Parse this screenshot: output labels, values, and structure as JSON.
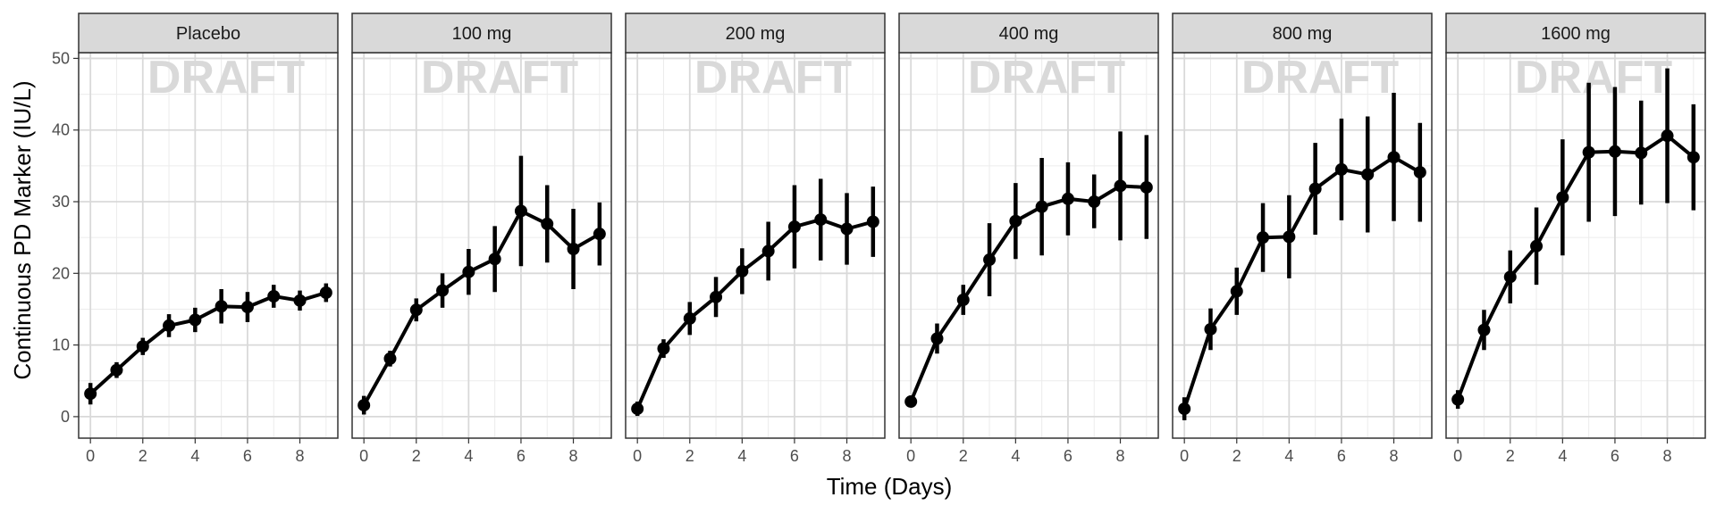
{
  "chart_data": {
    "type": "line",
    "facets": [
      {
        "label": "Placebo",
        "x": [
          0,
          1,
          2,
          3,
          4,
          5,
          6,
          7,
          8,
          9
        ],
        "y": [
          3.2,
          6.5,
          9.8,
          12.7,
          13.5,
          15.4,
          15.3,
          16.8,
          16.2,
          17.3
        ],
        "lower": [
          1.7,
          5.4,
          8.6,
          11.1,
          11.8,
          13.0,
          13.2,
          15.2,
          14.8,
          16.0
        ],
        "upper": [
          4.7,
          7.6,
          11.0,
          14.3,
          15.2,
          17.8,
          17.4,
          18.4,
          17.6,
          18.6
        ]
      },
      {
        "label": "100 mg",
        "x": [
          0,
          1,
          2,
          3,
          4,
          5,
          6,
          7,
          8,
          9
        ],
        "y": [
          1.6,
          8.1,
          14.9,
          17.6,
          20.2,
          22.0,
          28.7,
          26.9,
          23.4,
          25.5
        ],
        "lower": [
          0.3,
          7.0,
          13.3,
          15.2,
          17.0,
          17.4,
          21.0,
          21.5,
          17.8,
          21.1
        ],
        "upper": [
          2.9,
          9.2,
          16.5,
          20.0,
          23.4,
          26.6,
          36.4,
          32.3,
          29.0,
          29.9
        ]
      },
      {
        "label": "200 mg",
        "x": [
          0,
          1,
          2,
          3,
          4,
          5,
          6,
          7,
          8,
          9
        ],
        "y": [
          1.1,
          9.5,
          13.7,
          16.7,
          20.3,
          23.1,
          26.5,
          27.5,
          26.2,
          27.2
        ],
        "lower": [
          0.1,
          8.2,
          11.4,
          13.9,
          17.1,
          19.0,
          20.7,
          21.8,
          21.2,
          22.3
        ],
        "upper": [
          2.1,
          10.8,
          16.0,
          19.5,
          23.5,
          27.2,
          32.3,
          33.2,
          31.2,
          32.1
        ]
      },
      {
        "label": "400 mg",
        "x": [
          0,
          1,
          2,
          3,
          4,
          5,
          6,
          7,
          8,
          9
        ],
        "y": [
          2.1,
          10.9,
          16.3,
          21.9,
          27.3,
          29.3,
          30.4,
          30.0,
          32.2,
          32.0
        ],
        "lower": [
          1.5,
          8.8,
          14.2,
          16.8,
          22.0,
          22.5,
          25.3,
          26.3,
          24.6,
          24.8
        ],
        "upper": [
          2.7,
          13.0,
          18.4,
          27.0,
          32.6,
          36.1,
          35.5,
          33.8,
          39.8,
          39.3
        ]
      },
      {
        "label": "800 mg",
        "x": [
          0,
          1,
          2,
          3,
          4,
          5,
          6,
          7,
          8,
          9
        ],
        "y": [
          1.1,
          12.2,
          17.5,
          25.0,
          25.1,
          31.8,
          34.5,
          33.8,
          36.2,
          34.1
        ],
        "lower": [
          -0.5,
          9.3,
          14.2,
          20.2,
          19.3,
          25.4,
          27.4,
          25.7,
          27.3,
          27.2
        ],
        "upper": [
          2.7,
          15.1,
          20.8,
          29.8,
          30.9,
          38.2,
          41.6,
          41.9,
          45.2,
          41.0
        ]
      },
      {
        "label": "1600 mg",
        "x": [
          0,
          1,
          2,
          3,
          4,
          5,
          6,
          7,
          8,
          9
        ],
        "y": [
          2.4,
          12.1,
          19.5,
          23.8,
          30.6,
          36.9,
          37.0,
          36.8,
          39.2,
          36.2
        ],
        "lower": [
          1.1,
          9.3,
          15.8,
          18.4,
          22.5,
          27.2,
          28.0,
          29.6,
          29.8,
          28.8
        ],
        "upper": [
          3.7,
          14.9,
          23.2,
          29.2,
          38.7,
          46.6,
          46.0,
          44.1,
          48.6,
          43.6
        ]
      }
    ],
    "xlabel": "Time (Days)",
    "ylabel": "Continuous PD Marker (IU/L)",
    "watermark": "DRAFT",
    "x_ticks": [
      0,
      2,
      4,
      6,
      8
    ],
    "y_ticks": [
      0,
      10,
      20,
      30,
      40,
      50
    ],
    "xlim": [
      -0.45,
      9.45
    ],
    "ylim": [
      -3.0,
      50.8
    ],
    "grid": true,
    "colors": {
      "line": "#000000",
      "grid_major": "#d9d9d9",
      "grid_minor": "#ececec",
      "strip_fill": "#d9d9d9",
      "panel_border": "#333333"
    }
  }
}
